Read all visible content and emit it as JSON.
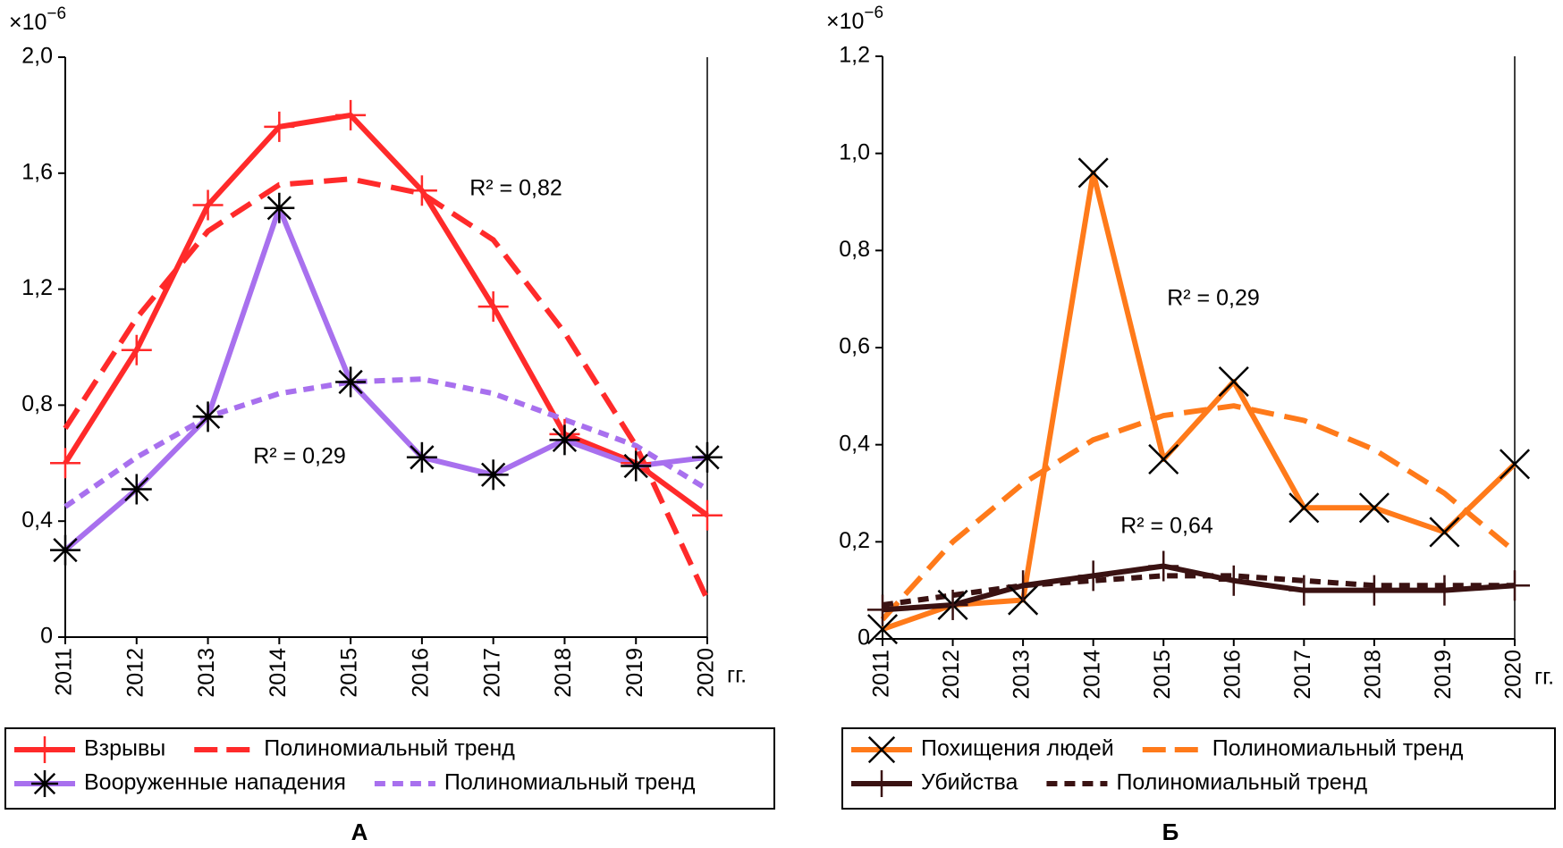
{
  "chart_data": [
    {
      "type": "line",
      "panel_label": "А",
      "y_multiplier": "×10",
      "y_multiplier_exp": "−6",
      "x_label": "гг.",
      "categories": [
        "2011",
        "2012",
        "2013",
        "2014",
        "2015",
        "2016",
        "2017",
        "2018",
        "2019",
        "2020"
      ],
      "ylim": [
        0,
        2.0
      ],
      "yticks": [
        0,
        {
          "value": 0.4,
          "label": "0,4"
        },
        {
          "value": 0.8,
          "label": "0,8"
        },
        {
          "value": 1.2,
          "label": "1,2"
        },
        {
          "value": 1.6,
          "label": "1,6"
        },
        {
          "value": 2.0,
          "label": "2,0"
        }
      ],
      "series": [
        {
          "name": "Взрывы",
          "color": "#ff2a2a",
          "marker": "plus",
          "marker_color": "#ff2a2a",
          "line_style": "solid",
          "values": [
            0.6,
            0.99,
            1.49,
            1.76,
            1.8,
            1.54,
            1.14,
            0.7,
            0.6,
            0.42
          ]
        },
        {
          "name": "Полиномиальный тренд",
          "color": "#ff2a2a",
          "line_style": "dashed",
          "values": [
            0.72,
            1.1,
            1.4,
            1.56,
            1.58,
            1.53,
            1.37,
            1.05,
            0.66,
            0.13
          ]
        },
        {
          "name": "Вооруженные нападения",
          "color": "#a870ee",
          "marker": "star",
          "marker_color": "#000000",
          "line_style": "solid",
          "values": [
            0.3,
            0.51,
            0.76,
            1.48,
            0.88,
            0.62,
            0.56,
            0.68,
            0.59,
            0.62
          ]
        },
        {
          "name": "Полиномиальный тренд",
          "color": "#a870ee",
          "line_style": "dotted",
          "values": [
            0.45,
            0.62,
            0.76,
            0.84,
            0.88,
            0.89,
            0.84,
            0.75,
            0.66,
            0.51
          ]
        }
      ],
      "annotations": [
        "R² = 0,82",
        "R² = 0,29"
      ]
    },
    {
      "type": "line",
      "panel_label": "Б",
      "y_multiplier": "×10",
      "y_multiplier_exp": "−6",
      "x_label": "гг.",
      "categories": [
        "2011",
        "2012",
        "2013",
        "2014",
        "2015",
        "2016",
        "2017",
        "2018",
        "2019",
        "2020"
      ],
      "ylim": [
        0,
        1.2
      ],
      "yticks": [
        0,
        {
          "value": 0.2,
          "label": "0,2"
        },
        {
          "value": 0.4,
          "label": "0,4"
        },
        {
          "value": 0.6,
          "label": "0,6"
        },
        {
          "value": 0.8,
          "label": "0,8"
        },
        {
          "value": 1.0,
          "label": "1,0"
        },
        {
          "value": 1.2,
          "label": "1,2"
        }
      ],
      "series": [
        {
          "name": "Похищения людей",
          "color": "#ff7a1a",
          "marker": "x",
          "marker_color": "#000000",
          "line_style": "solid",
          "values": [
            0.02,
            0.07,
            0.08,
            0.96,
            0.37,
            0.53,
            0.27,
            0.27,
            0.22,
            0.36
          ]
        },
        {
          "name": "Полиномиальный тренд",
          "color": "#ff7a1a",
          "line_style": "dashed",
          "values": [
            0.04,
            0.2,
            0.32,
            0.41,
            0.46,
            0.48,
            0.45,
            0.39,
            0.3,
            0.18
          ]
        },
        {
          "name": "Убийства",
          "color": "#3a1212",
          "marker": "plus",
          "marker_color": "#3a1212",
          "line_style": "solid",
          "values": [
            0.06,
            0.07,
            0.11,
            0.13,
            0.15,
            0.12,
            0.1,
            0.1,
            0.1,
            0.11
          ]
        },
        {
          "name": "Полиномиальный тренд",
          "color": "#3a1212",
          "line_style": "dotted",
          "values": [
            0.07,
            0.09,
            0.11,
            0.12,
            0.13,
            0.13,
            0.12,
            0.11,
            0.11,
            0.11
          ]
        }
      ],
      "annotations": [
        "R² = 0,29",
        "R² = 0,64"
      ]
    }
  ]
}
